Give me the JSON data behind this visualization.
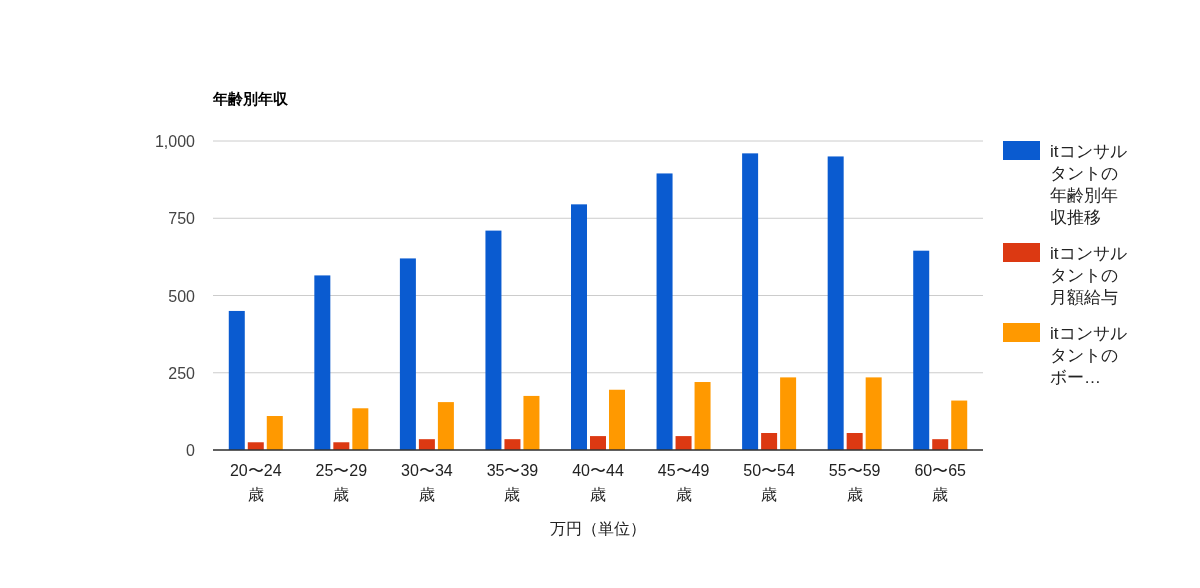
{
  "chart_data": {
    "type": "bar",
    "title": "年齢別年収",
    "xlabel": "万円（単位）",
    "categories": [
      "20〜24歳",
      "25〜29歳",
      "30〜34歳",
      "35〜39歳",
      "40〜44歳",
      "45〜49歳",
      "50〜54歳",
      "55〜59歳",
      "60〜65歳"
    ],
    "series": [
      {
        "name": "itコンサルタントの年齢別年収推移",
        "color": "#0a5bd0",
        "values": [
          450,
          565,
          620,
          710,
          795,
          895,
          960,
          950,
          645
        ]
      },
      {
        "name": "itコンサルタントの月額給与",
        "color": "#dc3912",
        "values": [
          25,
          25,
          35,
          35,
          45,
          45,
          55,
          55,
          35
        ]
      },
      {
        "name": "itコンサルタントのボー…",
        "color": "#ff9900",
        "values": [
          110,
          135,
          155,
          175,
          195,
          220,
          235,
          235,
          160
        ]
      }
    ],
    "ylim": [
      0,
      1000
    ],
    "yticks": [
      0,
      250,
      500,
      750,
      {
        "value": 1000,
        "label": "1,000"
      }
    ],
    "grid": "y",
    "legend": "right"
  }
}
